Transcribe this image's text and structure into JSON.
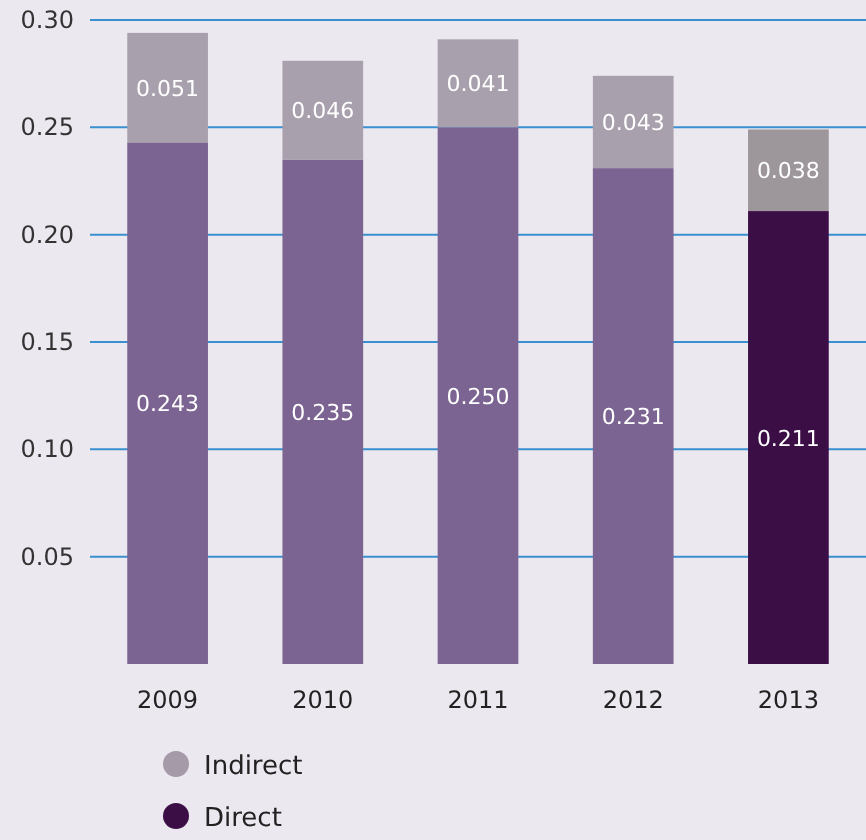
{
  "chart_data": {
    "type": "bar",
    "stacked": true,
    "categories": [
      "2009",
      "2010",
      "2011",
      "2012",
      "2013"
    ],
    "series": [
      {
        "name": "Direct",
        "color": "#3b0f45",
        "colors": [
          "#7b6491",
          "#7b6491",
          "#7b6491",
          "#7b6491",
          "#3b0f45"
        ],
        "values": [
          0.243,
          0.235,
          0.25,
          0.231,
          0.211
        ],
        "value_labels": [
          "0.243",
          "0.235",
          "0.250",
          "0.231",
          "0.211"
        ]
      },
      {
        "name": "Indirect",
        "color": "#a49aa8",
        "colors": [
          "#a9a0ad",
          "#a9a0ad",
          "#a9a0ad",
          "#a9a0ad",
          "#9d969b"
        ],
        "values": [
          0.051,
          0.046,
          0.041,
          0.043,
          0.038
        ],
        "value_labels": [
          "0.051",
          "0.046",
          "0.041",
          "0.043",
          "0.038"
        ]
      }
    ],
    "ylim": [
      0,
      0.3
    ],
    "yticks": [
      {
        "value": 0.05,
        "label": "0.05"
      },
      {
        "value": 0.1,
        "label": "0.10"
      },
      {
        "value": 0.15,
        "label": "0.15"
      },
      {
        "value": 0.2,
        "label": "0.20"
      },
      {
        "value": 0.25,
        "label": "0.25"
      },
      {
        "value": 0.3,
        "label": "0.30"
      }
    ],
    "grid": "y",
    "legend": "bottom",
    "marker": "circle"
  }
}
